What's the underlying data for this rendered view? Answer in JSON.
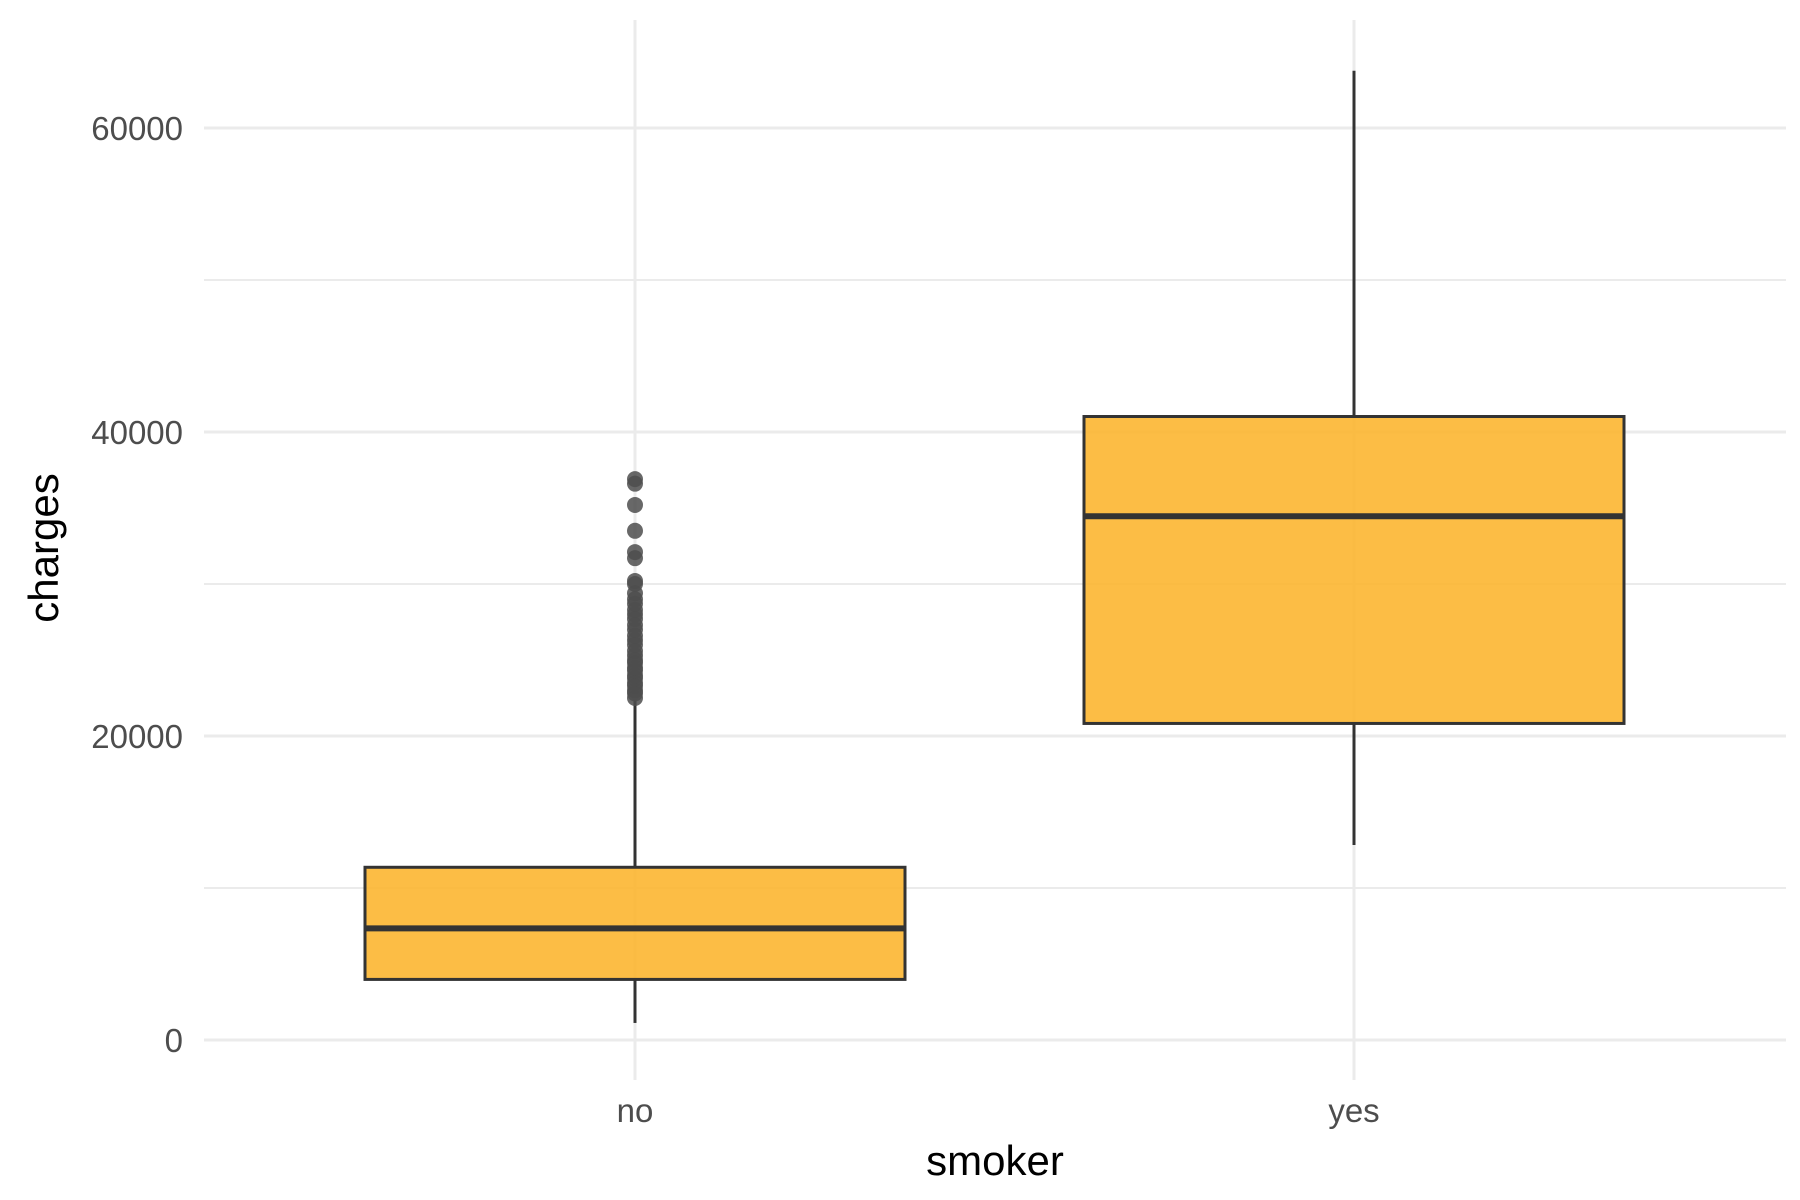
{
  "chart_data": {
    "type": "boxplot",
    "xlabel": "smoker",
    "ylabel": "charges",
    "ylim": [
      -5000,
      67500
    ],
    "y_ticks": [
      0,
      20000,
      40000,
      60000
    ],
    "y_minor_ticks": [
      10000,
      30000,
      50000
    ],
    "grid": true,
    "fill_color": "#FCB631",
    "line_color": "#333333",
    "outlier_color": "#4d4d4d",
    "categories": [
      "no",
      "yes"
    ],
    "boxes": [
      {
        "category": "no",
        "whisker_low": 1122,
        "q1": 3986,
        "median": 7345,
        "q3": 11363,
        "whisker_high": 22395,
        "outliers": [
          22500,
          22800,
          23000,
          23300,
          23500,
          23800,
          24000,
          24300,
          24500,
          24800,
          25000,
          25300,
          25600,
          26000,
          26300,
          26600,
          27000,
          27300,
          27700,
          28000,
          28300,
          28700,
          29000,
          29400,
          30000,
          30200,
          31700,
          32100,
          33500,
          35200,
          36600,
          36900
        ]
      },
      {
        "category": "yes",
        "whisker_low": 12829,
        "q1": 20826,
        "median": 34456,
        "q3": 41019,
        "whisker_high": 63770,
        "outliers": []
      }
    ]
  }
}
